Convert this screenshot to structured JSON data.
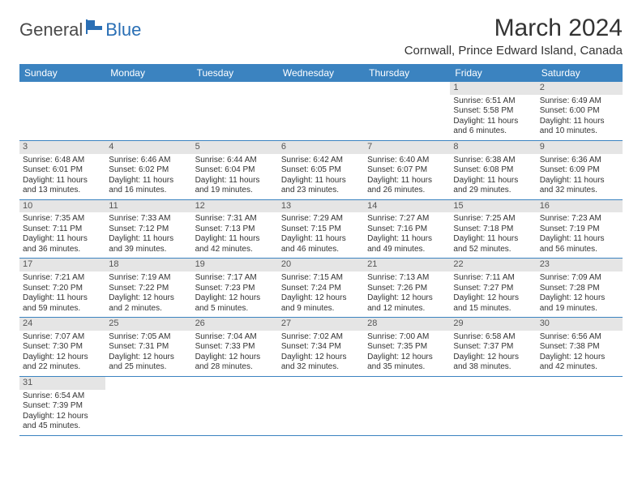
{
  "logo": {
    "general": "General",
    "blue": "Blue"
  },
  "title": "March 2024",
  "location": "Cornwall, Prince Edward Island, Canada",
  "header_color": "#3b83c0",
  "daynum_bg": "#e5e5e5",
  "divider_color": "#3b83c0",
  "day_names": [
    "Sunday",
    "Monday",
    "Tuesday",
    "Wednesday",
    "Thursday",
    "Friday",
    "Saturday"
  ],
  "weeks": [
    [
      null,
      null,
      null,
      null,
      null,
      {
        "num": "1",
        "sunrise": "Sunrise: 6:51 AM",
        "sunset": "Sunset: 5:58 PM",
        "day1": "Daylight: 11 hours",
        "day2": "and 6 minutes."
      },
      {
        "num": "2",
        "sunrise": "Sunrise: 6:49 AM",
        "sunset": "Sunset: 6:00 PM",
        "day1": "Daylight: 11 hours",
        "day2": "and 10 minutes."
      }
    ],
    [
      {
        "num": "3",
        "sunrise": "Sunrise: 6:48 AM",
        "sunset": "Sunset: 6:01 PM",
        "day1": "Daylight: 11 hours",
        "day2": "and 13 minutes."
      },
      {
        "num": "4",
        "sunrise": "Sunrise: 6:46 AM",
        "sunset": "Sunset: 6:02 PM",
        "day1": "Daylight: 11 hours",
        "day2": "and 16 minutes."
      },
      {
        "num": "5",
        "sunrise": "Sunrise: 6:44 AM",
        "sunset": "Sunset: 6:04 PM",
        "day1": "Daylight: 11 hours",
        "day2": "and 19 minutes."
      },
      {
        "num": "6",
        "sunrise": "Sunrise: 6:42 AM",
        "sunset": "Sunset: 6:05 PM",
        "day1": "Daylight: 11 hours",
        "day2": "and 23 minutes."
      },
      {
        "num": "7",
        "sunrise": "Sunrise: 6:40 AM",
        "sunset": "Sunset: 6:07 PM",
        "day1": "Daylight: 11 hours",
        "day2": "and 26 minutes."
      },
      {
        "num": "8",
        "sunrise": "Sunrise: 6:38 AM",
        "sunset": "Sunset: 6:08 PM",
        "day1": "Daylight: 11 hours",
        "day2": "and 29 minutes."
      },
      {
        "num": "9",
        "sunrise": "Sunrise: 6:36 AM",
        "sunset": "Sunset: 6:09 PM",
        "day1": "Daylight: 11 hours",
        "day2": "and 32 minutes."
      }
    ],
    [
      {
        "num": "10",
        "sunrise": "Sunrise: 7:35 AM",
        "sunset": "Sunset: 7:11 PM",
        "day1": "Daylight: 11 hours",
        "day2": "and 36 minutes."
      },
      {
        "num": "11",
        "sunrise": "Sunrise: 7:33 AM",
        "sunset": "Sunset: 7:12 PM",
        "day1": "Daylight: 11 hours",
        "day2": "and 39 minutes."
      },
      {
        "num": "12",
        "sunrise": "Sunrise: 7:31 AM",
        "sunset": "Sunset: 7:13 PM",
        "day1": "Daylight: 11 hours",
        "day2": "and 42 minutes."
      },
      {
        "num": "13",
        "sunrise": "Sunrise: 7:29 AM",
        "sunset": "Sunset: 7:15 PM",
        "day1": "Daylight: 11 hours",
        "day2": "and 46 minutes."
      },
      {
        "num": "14",
        "sunrise": "Sunrise: 7:27 AM",
        "sunset": "Sunset: 7:16 PM",
        "day1": "Daylight: 11 hours",
        "day2": "and 49 minutes."
      },
      {
        "num": "15",
        "sunrise": "Sunrise: 7:25 AM",
        "sunset": "Sunset: 7:18 PM",
        "day1": "Daylight: 11 hours",
        "day2": "and 52 minutes."
      },
      {
        "num": "16",
        "sunrise": "Sunrise: 7:23 AM",
        "sunset": "Sunset: 7:19 PM",
        "day1": "Daylight: 11 hours",
        "day2": "and 56 minutes."
      }
    ],
    [
      {
        "num": "17",
        "sunrise": "Sunrise: 7:21 AM",
        "sunset": "Sunset: 7:20 PM",
        "day1": "Daylight: 11 hours",
        "day2": "and 59 minutes."
      },
      {
        "num": "18",
        "sunrise": "Sunrise: 7:19 AM",
        "sunset": "Sunset: 7:22 PM",
        "day1": "Daylight: 12 hours",
        "day2": "and 2 minutes."
      },
      {
        "num": "19",
        "sunrise": "Sunrise: 7:17 AM",
        "sunset": "Sunset: 7:23 PM",
        "day1": "Daylight: 12 hours",
        "day2": "and 5 minutes."
      },
      {
        "num": "20",
        "sunrise": "Sunrise: 7:15 AM",
        "sunset": "Sunset: 7:24 PM",
        "day1": "Daylight: 12 hours",
        "day2": "and 9 minutes."
      },
      {
        "num": "21",
        "sunrise": "Sunrise: 7:13 AM",
        "sunset": "Sunset: 7:26 PM",
        "day1": "Daylight: 12 hours",
        "day2": "and 12 minutes."
      },
      {
        "num": "22",
        "sunrise": "Sunrise: 7:11 AM",
        "sunset": "Sunset: 7:27 PM",
        "day1": "Daylight: 12 hours",
        "day2": "and 15 minutes."
      },
      {
        "num": "23",
        "sunrise": "Sunrise: 7:09 AM",
        "sunset": "Sunset: 7:28 PM",
        "day1": "Daylight: 12 hours",
        "day2": "and 19 minutes."
      }
    ],
    [
      {
        "num": "24",
        "sunrise": "Sunrise: 7:07 AM",
        "sunset": "Sunset: 7:30 PM",
        "day1": "Daylight: 12 hours",
        "day2": "and 22 minutes."
      },
      {
        "num": "25",
        "sunrise": "Sunrise: 7:05 AM",
        "sunset": "Sunset: 7:31 PM",
        "day1": "Daylight: 12 hours",
        "day2": "and 25 minutes."
      },
      {
        "num": "26",
        "sunrise": "Sunrise: 7:04 AM",
        "sunset": "Sunset: 7:33 PM",
        "day1": "Daylight: 12 hours",
        "day2": "and 28 minutes."
      },
      {
        "num": "27",
        "sunrise": "Sunrise: 7:02 AM",
        "sunset": "Sunset: 7:34 PM",
        "day1": "Daylight: 12 hours",
        "day2": "and 32 minutes."
      },
      {
        "num": "28",
        "sunrise": "Sunrise: 7:00 AM",
        "sunset": "Sunset: 7:35 PM",
        "day1": "Daylight: 12 hours",
        "day2": "and 35 minutes."
      },
      {
        "num": "29",
        "sunrise": "Sunrise: 6:58 AM",
        "sunset": "Sunset: 7:37 PM",
        "day1": "Daylight: 12 hours",
        "day2": "and 38 minutes."
      },
      {
        "num": "30",
        "sunrise": "Sunrise: 6:56 AM",
        "sunset": "Sunset: 7:38 PM",
        "day1": "Daylight: 12 hours",
        "day2": "and 42 minutes."
      }
    ],
    [
      {
        "num": "31",
        "sunrise": "Sunrise: 6:54 AM",
        "sunset": "Sunset: 7:39 PM",
        "day1": "Daylight: 12 hours",
        "day2": "and 45 minutes."
      },
      null,
      null,
      null,
      null,
      null,
      null
    ]
  ]
}
